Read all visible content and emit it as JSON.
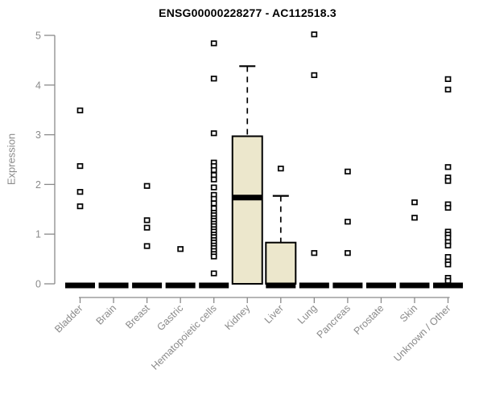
{
  "chart_data": {
    "type": "boxplot",
    "title": "ENSG00000228277 - AC112518.3",
    "xlabel": "",
    "ylabel": "Expression",
    "ylim": [
      0,
      5
    ],
    "yticks": [
      0,
      1,
      2,
      3,
      4,
      5
    ],
    "grid": false,
    "legend": false,
    "categories": [
      "Bladder",
      "Brain",
      "Breast",
      "Gastric",
      "Hematopoietic cells",
      "Kidney",
      "Liver",
      "Lung",
      "Pancreas",
      "Prostate",
      "Skin",
      "Unknown / Other"
    ],
    "boxes": [
      {
        "category": "Bladder",
        "q1": 0,
        "median": 0,
        "q3": 0,
        "whisker_low": 0,
        "whisker_high": 0,
        "points": [
          3.49,
          2.37,
          1.85,
          1.56
        ]
      },
      {
        "category": "Brain",
        "q1": 0,
        "median": 0,
        "q3": 0,
        "whisker_low": 0,
        "whisker_high": 0,
        "points": []
      },
      {
        "category": "Breast",
        "q1": 0,
        "median": 0,
        "q3": 0,
        "whisker_low": 0,
        "whisker_high": 0,
        "points": [
          1.97,
          1.28,
          1.13,
          0.76
        ]
      },
      {
        "category": "Gastric",
        "q1": 0,
        "median": 0,
        "q3": 0,
        "whisker_low": 0,
        "whisker_high": 0,
        "points": [
          0.7
        ]
      },
      {
        "category": "Hematopoietic cells",
        "q1": 0,
        "median": 0,
        "q3": 0,
        "whisker_low": 0,
        "whisker_high": 0,
        "points": [
          4.84,
          4.13,
          3.03,
          2.44,
          2.37,
          2.29,
          2.19,
          2.1,
          1.94,
          1.79,
          1.71,
          1.62,
          1.52,
          1.43,
          1.38,
          1.32,
          1.27,
          1.21,
          1.16,
          1.1,
          1.05,
          0.99,
          0.94,
          0.88,
          0.83,
          0.77,
          0.72,
          0.66,
          0.6,
          0.55,
          0.21
        ]
      },
      {
        "category": "Kidney",
        "q1": 0,
        "median": 1.74,
        "q3": 2.97,
        "whisker_low": 0,
        "whisker_high": 4.38,
        "points": []
      },
      {
        "category": "Liver",
        "q1": 0,
        "median": 0,
        "q3": 0.83,
        "whisker_low": 0,
        "whisker_high": 1.77,
        "points": [
          2.32
        ]
      },
      {
        "category": "Lung",
        "q1": 0,
        "median": 0,
        "q3": 0,
        "whisker_low": 0,
        "whisker_high": 0,
        "points": [
          5.02,
          4.2,
          0.62
        ]
      },
      {
        "category": "Pancreas",
        "q1": 0,
        "median": 0,
        "q3": 0,
        "whisker_low": 0,
        "whisker_high": 0,
        "points": [
          2.26,
          1.25,
          0.62
        ]
      },
      {
        "category": "Prostate",
        "q1": 0,
        "median": 0,
        "q3": 0,
        "whisker_low": 0,
        "whisker_high": 0,
        "points": []
      },
      {
        "category": "Skin",
        "q1": 0,
        "median": 0,
        "q3": 0,
        "whisker_low": 0,
        "whisker_high": 0,
        "points": [
          1.64,
          1.33
        ]
      },
      {
        "category": "Unknown / Other",
        "q1": 0,
        "median": 0,
        "q3": 0,
        "whisker_low": 0,
        "whisker_high": 0,
        "points": [
          4.12,
          3.91,
          2.35,
          2.14,
          2.07,
          1.6,
          1.53,
          1.05,
          0.99,
          0.93,
          0.84,
          0.77,
          0.54,
          0.45,
          0.39,
          0.12,
          0.06
        ]
      }
    ],
    "colors": {
      "box_fill": "#ECE7CC",
      "box_stroke": "#000000",
      "median": "#000000",
      "point_fill": "#ffffff",
      "point_stroke": "#000000",
      "axis": "#8a8a8a",
      "tick_label": "#8a8a8a",
      "title": "#000000"
    }
  }
}
